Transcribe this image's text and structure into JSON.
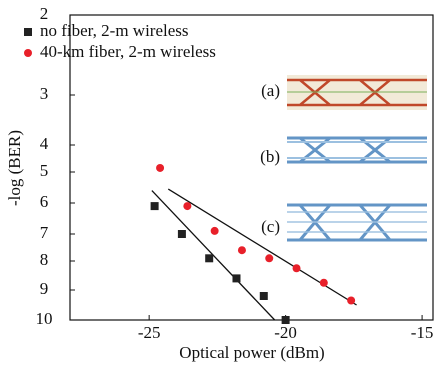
{
  "chart_data": {
    "type": "scatter",
    "xlabel": "Optical power (dBm)",
    "ylabel": "-log (BER)",
    "xlim": [
      -27.9,
      -14.6
    ],
    "xticks": [
      -25,
      -20,
      -15
    ],
    "ylim": [
      2,
      10
    ],
    "yticks": [
      2,
      3,
      4,
      5,
      6,
      7,
      8,
      9,
      10
    ],
    "y_inverted": true,
    "series": [
      {
        "name": "no fiber, 2-m wireless",
        "color": "#222222",
        "marker": "square",
        "x": [
          -24.8,
          -23.8,
          -22.8,
          -21.8,
          -20.8,
          -20.0
        ],
        "values": [
          6.1,
          7.0,
          7.9,
          8.6,
          9.2,
          10.0
        ]
      },
      {
        "name": "40-km fiber, 2-m wireless",
        "color": "#e8202a",
        "marker": "circle",
        "x": [
          -24.6,
          -23.6,
          -22.6,
          -21.6,
          -20.6,
          -19.6,
          -18.6,
          -17.6
        ],
        "values": [
          4.85,
          6.1,
          6.9,
          7.6,
          7.9,
          8.25,
          8.75,
          9.35
        ]
      }
    ],
    "fit_lines": [
      {
        "x": [
          -24.9,
          -20.4
        ],
        "values": [
          5.6,
          10
        ]
      },
      {
        "x": [
          -24.3,
          -17.4
        ],
        "values": [
          5.55,
          9.5
        ]
      }
    ],
    "annotations": [
      "(a)",
      "(b)",
      "(c)"
    ]
  }
}
